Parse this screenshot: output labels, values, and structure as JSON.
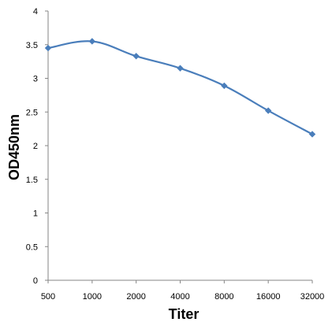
{
  "chart_data": {
    "type": "line",
    "title": "",
    "xlabel": "Titer",
    "ylabel": "OD450nm",
    "categories": [
      "500",
      "1000",
      "2000",
      "4000",
      "8000",
      "16000",
      "32000"
    ],
    "series": [
      {
        "values": [
          3.45,
          3.55,
          3.33,
          3.15,
          2.89,
          2.52,
          2.17
        ]
      }
    ],
    "ylim": [
      0,
      4
    ],
    "yticks": [
      "0",
      "0.5",
      "1",
      "1.5",
      "2",
      "2.5",
      "3",
      "3.5",
      "4"
    ],
    "grid": false,
    "legend": "none",
    "colors": {
      "series": "#4a7ebb",
      "axis": "#868686"
    }
  }
}
